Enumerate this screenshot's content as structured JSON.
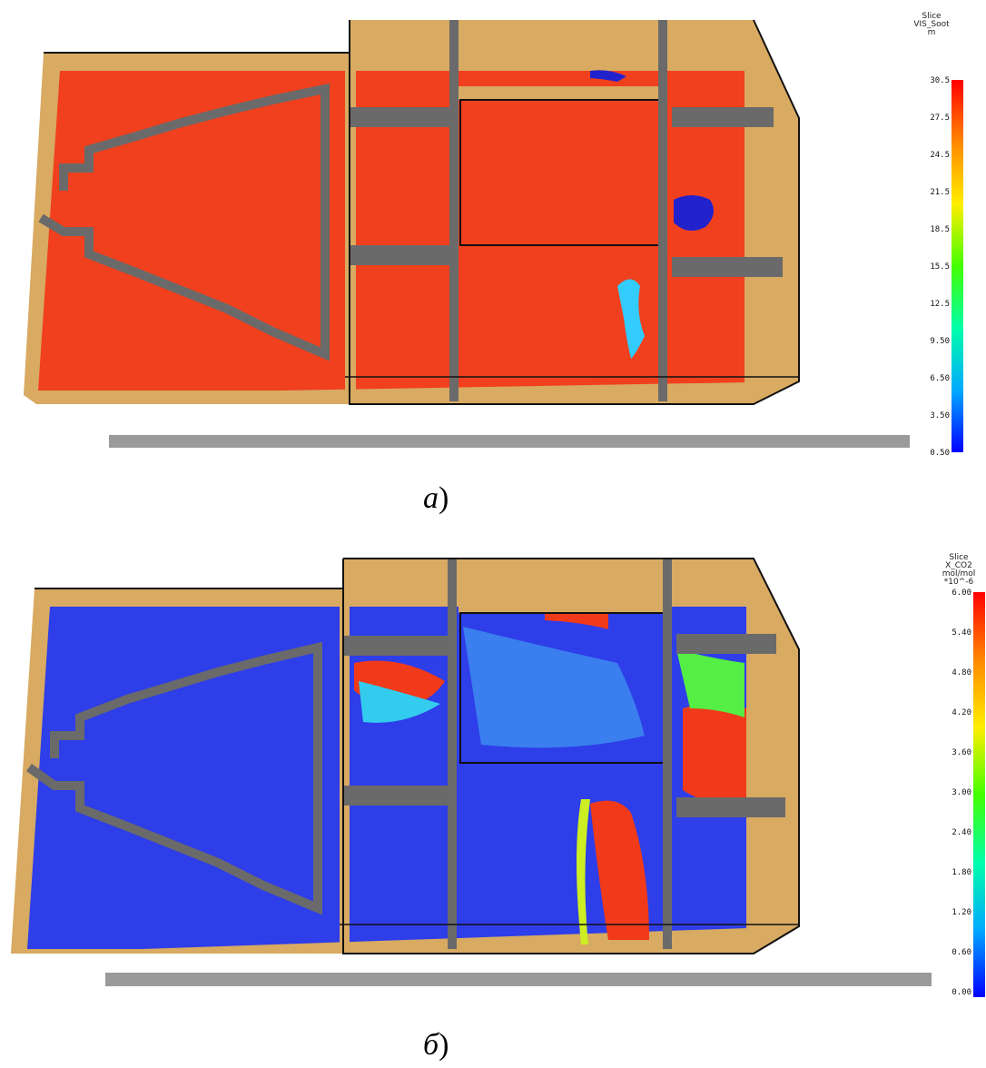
{
  "figure_a": {
    "colorbar": {
      "title": [
        "Slice",
        "VIS_Soot",
        "m"
      ],
      "ticks": [
        "30.5",
        "27.5",
        "24.5",
        "21.5",
        "18.5",
        "15.5",
        "12.5",
        "9.50",
        "6.50",
        "3.50",
        "0.50"
      ]
    },
    "caption_letter": "а",
    "caption_paren": ")"
  },
  "figure_b": {
    "colorbar": {
      "title": [
        "Slice",
        "X_CO2",
        "mol/mol",
        "*10^-6"
      ],
      "ticks": [
        "6.00",
        "5.40",
        "4.80",
        "4.20",
        "3.60",
        "3.00",
        "2.40",
        "1.80",
        "1.20",
        "0.60",
        "0.00"
      ]
    },
    "caption_letter": "б",
    "caption_paren": ")"
  },
  "colors": {
    "wall_top": "#d8aa62",
    "wall_side": "#6a6a6a",
    "floor_red": "#f0401e",
    "floor_blue": "#2e3ee8",
    "scroll_bar": "#9a9a9a"
  }
}
